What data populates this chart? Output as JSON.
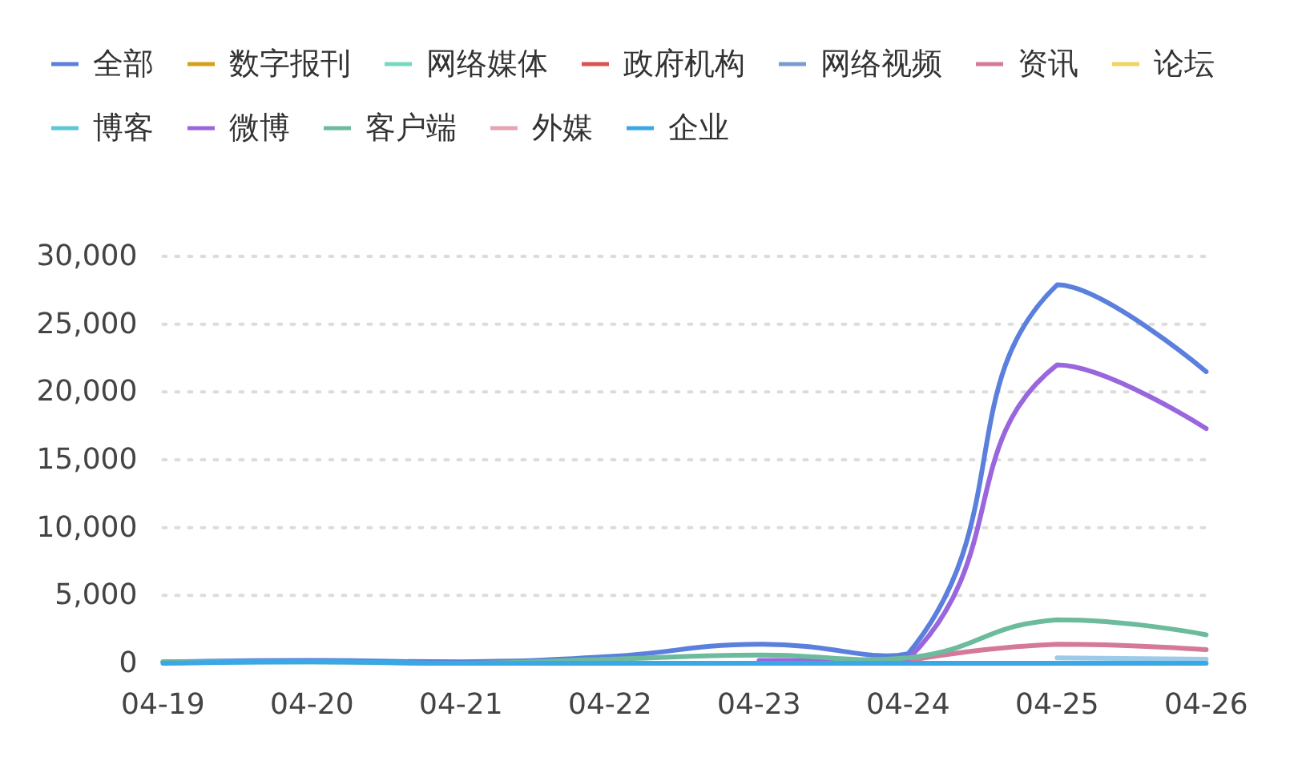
{
  "chart_data": {
    "type": "line",
    "categories": [
      "04-19",
      "04-20",
      "04-21",
      "04-22",
      "04-23",
      "04-24",
      "04-25",
      "04-26"
    ],
    "series": [
      {
        "name": "全部",
        "color": "#5b7fdc",
        "values": [
          100,
          200,
          100,
          500,
          1400,
          700,
          27900,
          21500
        ]
      },
      {
        "name": "数字报刊",
        "color": "#d4a017",
        "values": [
          null,
          null,
          null,
          null,
          null,
          null,
          null,
          null
        ]
      },
      {
        "name": "网络媒体",
        "color": "#73d9c0",
        "values": [
          null,
          null,
          null,
          null,
          null,
          null,
          null,
          null
        ]
      },
      {
        "name": "政府机构",
        "color": "#d9534f",
        "values": [
          null,
          null,
          null,
          null,
          null,
          null,
          null,
          null
        ]
      },
      {
        "name": "网络视频",
        "color": "#7b9bd0",
        "values": [
          null,
          null,
          null,
          null,
          null,
          null,
          null,
          null
        ]
      },
      {
        "name": "资讯",
        "color": "#d4799a",
        "values": [
          null,
          null,
          null,
          null,
          null,
          200,
          1400,
          1000
        ]
      },
      {
        "name": "论坛",
        "color": "#f2d45e",
        "values": [
          null,
          null,
          null,
          null,
          null,
          null,
          null,
          null
        ]
      },
      {
        "name": "博客",
        "color": "#5cc5d6",
        "values": [
          null,
          null,
          null,
          null,
          null,
          null,
          null,
          null
        ]
      },
      {
        "name": "微博",
        "color": "#9a66dd",
        "values": [
          null,
          null,
          null,
          null,
          200,
          300,
          22000,
          17300
        ]
      },
      {
        "color": "#9ccbe9",
        "values": [
          null,
          null,
          null,
          null,
          null,
          null,
          400,
          300
        ]
      },
      {
        "name": "客户端",
        "color": "#6cbb9c",
        "values": [
          100,
          100,
          0,
          300,
          600,
          400,
          3200,
          2100
        ]
      },
      {
        "name": "外媒",
        "color": "#e8a3b3",
        "values": [
          null,
          null,
          null,
          null,
          null,
          null,
          null,
          null
        ]
      },
      {
        "name": "企业",
        "color": "#3aa8e6",
        "values": [
          0,
          100,
          0,
          0,
          0,
          0,
          0,
          0
        ]
      }
    ],
    "ylim": [
      0,
      30000
    ],
    "yticks": [
      0,
      {
        "value": 5000,
        "label": "5,000"
      },
      {
        "value": 10000,
        "label": "10,000"
      },
      {
        "value": 15000,
        "label": "15,000"
      },
      {
        "value": 20000,
        "label": "20,000"
      },
      {
        "value": 25000,
        "label": "25,000"
      },
      {
        "value": 30000,
        "label": "30,000"
      }
    ],
    "grid": "y",
    "legend": "top",
    "marker": "none",
    "line_style": "solid"
  }
}
